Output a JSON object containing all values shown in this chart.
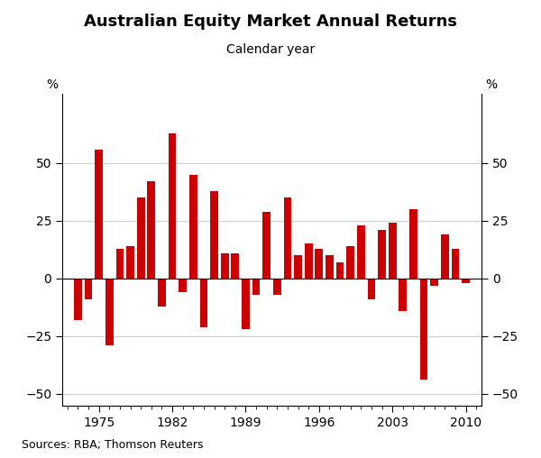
{
  "title": "Australian Equity Market Annual Returns",
  "subtitle": "Calendar year",
  "ylabel_left": "%",
  "ylabel_right": "%",
  "source": "Sources: RBA; Thomson Reuters",
  "bar_color": "#cc0000",
  "ylim": [
    -55,
    80
  ],
  "yticks": [
    -50,
    -25,
    0,
    25,
    50
  ],
  "xlim": [
    1971.5,
    2011.5
  ],
  "years": [
    1973,
    1974,
    1975,
    1976,
    1977,
    1978,
    1979,
    1980,
    1981,
    1982,
    1983,
    1984,
    1985,
    1986,
    1987,
    1988,
    1989,
    1990,
    1991,
    1992,
    1993,
    1994,
    1995,
    1996,
    1997,
    1998,
    1999,
    2000,
    2001,
    2002,
    2003,
    2004,
    2005,
    2006,
    2007,
    2008,
    2009,
    2010
  ],
  "values": [
    -18,
    -9,
    56,
    -29,
    13,
    14,
    35,
    42,
    -12,
    63,
    -6,
    45,
    -21,
    38,
    11,
    11,
    -22,
    -7,
    29,
    -7,
    35,
    10,
    15,
    13,
    10,
    7,
    14,
    23,
    -9,
    21,
    24,
    -14,
    30,
    -44,
    -3,
    19,
    13,
    -2
  ],
  "major_xticks": [
    1975,
    1982,
    1989,
    1996,
    2003,
    2010
  ],
  "bar_width": 0.75
}
